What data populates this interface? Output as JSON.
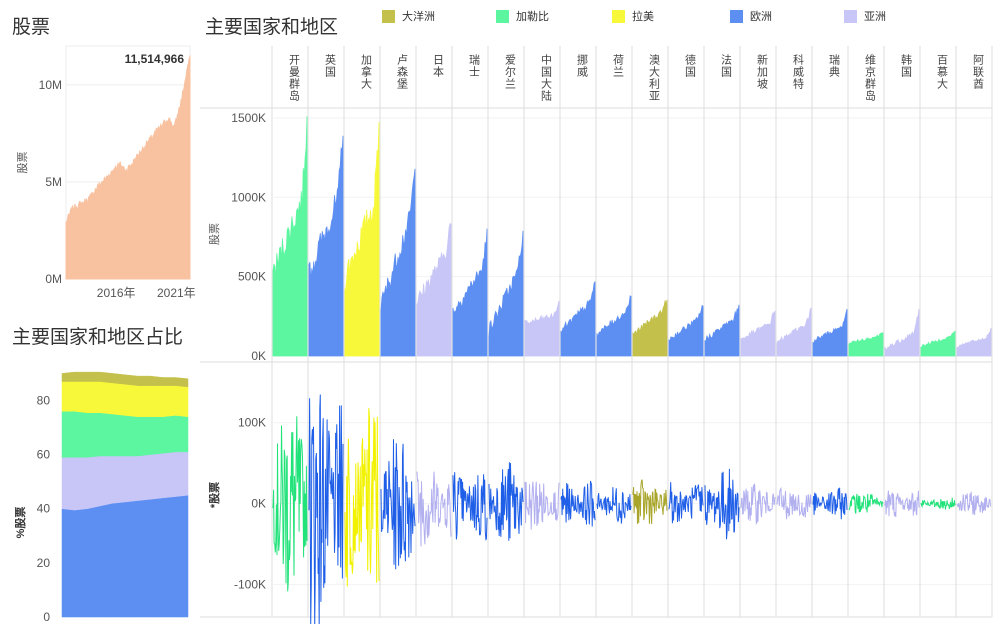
{
  "titles": {
    "stocks": "股票",
    "share": "主要国家和地区占比",
    "main": "主要国家和地区"
  },
  "legend": [
    {
      "name": "大洋洲",
      "color": "#c3c04c"
    },
    {
      "name": "加勒比",
      "color": "#5cf5a0"
    },
    {
      "name": "拉美",
      "color": "#f8f83b"
    },
    {
      "name": "欧洲",
      "color": "#5d8ff3"
    },
    {
      "name": "亚洲",
      "color": "#c8c6f6"
    }
  ],
  "chart_data": [
    {
      "type": "area",
      "title": "股票",
      "ylabel": "股票",
      "color": "#f8c2a0",
      "yticks": [
        {
          "value": 0,
          "label": "0M"
        },
        {
          "value": 5000000,
          "label": "5M"
        },
        {
          "value": 10000000,
          "label": "10M"
        }
      ],
      "ylim": [
        0,
        12000000
      ],
      "xticks": [
        {
          "value": 2016,
          "label": "2016年"
        },
        {
          "value": 2021,
          "label": "2021年"
        }
      ],
      "xlim": [
        2012,
        2022.3
      ],
      "x": [
        2012.0,
        2012.5,
        2013.0,
        2013.5,
        2014.0,
        2014.5,
        2015.0,
        2015.5,
        2016.0,
        2016.5,
        2017.0,
        2017.5,
        2018.0,
        2018.5,
        2019.0,
        2019.5,
        2020.0,
        2020.5,
        2021.0,
        2021.5,
        2022.0,
        2022.3
      ],
      "values": [
        2900000,
        3600000,
        3800000,
        3950000,
        4200000,
        4650000,
        5000000,
        5300000,
        5700000,
        5900000,
        5600000,
        5950000,
        6400000,
        6800000,
        7200000,
        7600000,
        7900000,
        8300000,
        7800000,
        9000000,
        10500000,
        11514966
      ],
      "max_label": "11,514,966"
    },
    {
      "type": "area",
      "title": "主要国家和地区占比",
      "ylabel": "%股票",
      "yticks": [
        0,
        20,
        40,
        60,
        80
      ],
      "ylim": [
        0,
        92
      ],
      "x": [
        0,
        1,
        2,
        3,
        4,
        5,
        6,
        7,
        8,
        9,
        10
      ],
      "series": [
        {
          "name": "欧洲",
          "color": "#5d8ff3",
          "values": [
            40,
            39.5,
            40,
            41,
            42,
            42.5,
            43,
            43.5,
            44,
            44.5,
            45
          ]
        },
        {
          "name": "亚洲",
          "color": "#c8c6f6",
          "values": [
            19,
            19.5,
            19,
            18.5,
            17.5,
            17,
            16.5,
            16.5,
            16.5,
            16.5,
            16
          ]
        },
        {
          "name": "加勒比",
          "color": "#5cf5a0",
          "values": [
            17,
            17,
            16.5,
            16,
            15.5,
            15,
            14.5,
            14,
            13.5,
            13.5,
            13
          ]
        },
        {
          "name": "拉美",
          "color": "#f8f83b",
          "values": [
            11,
            11,
            11.5,
            11.5,
            11.5,
            11.5,
            11.5,
            11.5,
            11.5,
            11,
            11
          ]
        },
        {
          "name": "大洋洲",
          "color": "#c3c04c",
          "values": [
            3,
            3.5,
            3.5,
            3.5,
            3.5,
            3.5,
            3.5,
            3.5,
            3,
            3,
            3
          ]
        }
      ]
    },
    {
      "type": "area",
      "title": "主要国家和地区",
      "ylabel": "股票",
      "yticks": [
        {
          "value": 0,
          "label": "0K"
        },
        {
          "value": 500000,
          "label": "500K"
        },
        {
          "value": 1000000,
          "label": "1000K"
        },
        {
          "value": 1500000,
          "label": "1500K"
        }
      ],
      "ylim": [
        0,
        1550000
      ],
      "countries": [
        {
          "name": "开曼群岛",
          "region": "加勒比",
          "start": 500000,
          "end": 1050000,
          "peak": 1460000
        },
        {
          "name": "英国",
          "region": "欧洲",
          "start": 500000,
          "end": 1050000,
          "peak": 1430000
        },
        {
          "name": "加拿大",
          "region": "拉美",
          "start": 480000,
          "end": 1020000,
          "peak": 1440000
        },
        {
          "name": "卢森堡",
          "region": "欧洲",
          "start": 300000,
          "end": 950000,
          "peak": 1140000
        },
        {
          "name": "日本",
          "region": "亚洲",
          "start": 330000,
          "end": 700000,
          "peak": 840000
        },
        {
          "name": "瑞士",
          "region": "欧洲",
          "start": 270000,
          "end": 580000,
          "peak": 760000
        },
        {
          "name": "爱尔兰",
          "region": "欧洲",
          "start": 150000,
          "end": 590000,
          "peak": 760000
        },
        {
          "name": "中国大陆",
          "region": "亚洲",
          "start": 200000,
          "end": 260000,
          "peak": 340000
        },
        {
          "name": "挪威",
          "region": "欧洲",
          "start": 150000,
          "end": 360000,
          "peak": 460000
        },
        {
          "name": "荷兰",
          "region": "欧洲",
          "start": 130000,
          "end": 300000,
          "peak": 380000
        },
        {
          "name": "澳大利亚",
          "region": "大洋洲",
          "start": 130000,
          "end": 300000,
          "peak": 350000
        },
        {
          "name": "德国",
          "region": "欧洲",
          "start": 100000,
          "end": 250000,
          "peak": 320000
        },
        {
          "name": "法国",
          "region": "欧洲",
          "start": 100000,
          "end": 250000,
          "peak": 320000
        },
        {
          "name": "新加坡",
          "region": "亚洲",
          "start": 100000,
          "end": 220000,
          "peak": 290000
        },
        {
          "name": "科威特",
          "region": "亚洲",
          "start": 80000,
          "end": 220000,
          "peak": 290000
        },
        {
          "name": "瑞典",
          "region": "欧洲",
          "start": 90000,
          "end": 200000,
          "peak": 280000
        },
        {
          "name": "维京群岛",
          "region": "加勒比",
          "start": 80000,
          "end": 130000,
          "peak": 150000
        },
        {
          "name": "韩国",
          "region": "亚洲",
          "start": 40000,
          "end": 160000,
          "peak": 290000
        },
        {
          "name": "百慕大",
          "region": "加勒比",
          "start": 60000,
          "end": 130000,
          "peak": 150000
        },
        {
          "name": "阿联酋",
          "region": "亚洲",
          "start": 60000,
          "end": 120000,
          "peak": 170000
        }
      ]
    },
    {
      "type": "line",
      "ylabel": "*股票",
      "yticks": [
        {
          "value": -100000,
          "label": "-100K"
        },
        {
          "value": 0,
          "label": "0K"
        },
        {
          "value": 100000,
          "label": "100K"
        }
      ],
      "ylim": [
        -140000,
        175000
      ],
      "amplitudes": [
        {
          "country": "开曼群岛",
          "amp": 125000
        },
        {
          "country": "英国",
          "amp": 165000
        },
        {
          "country": "加拿大",
          "amp": 135000
        },
        {
          "country": "卢森堡",
          "amp": 90000
        },
        {
          "country": "日本",
          "amp": 55000
        },
        {
          "country": "瑞士",
          "amp": 50000
        },
        {
          "country": "爱尔兰",
          "amp": 55000
        },
        {
          "country": "中国大陆",
          "amp": 35000
        },
        {
          "country": "挪威",
          "amp": 30000
        },
        {
          "country": "荷兰",
          "amp": 25000
        },
        {
          "country": "澳大利亚",
          "amp": 30000
        },
        {
          "country": "德国",
          "amp": 30000
        },
        {
          "country": "法国",
          "amp": 45000
        },
        {
          "country": "新加坡",
          "amp": 25000
        },
        {
          "country": "科威特",
          "amp": 25000
        },
        {
          "country": "瑞典",
          "amp": 20000
        },
        {
          "country": "维京群岛",
          "amp": 15000
        },
        {
          "country": "韩国",
          "amp": 20000
        },
        {
          "country": "百慕大",
          "amp": 8000
        },
        {
          "country": "阿联酋",
          "amp": 15000
        }
      ]
    }
  ]
}
